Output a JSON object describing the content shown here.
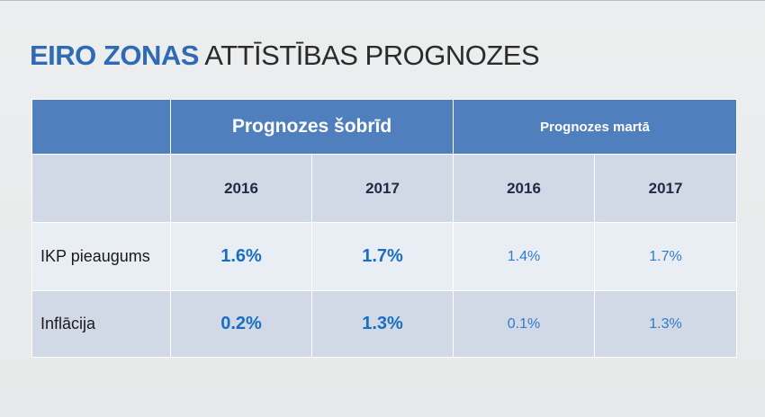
{
  "title": {
    "accent": "EIRO ZONAS",
    "rest": " ATTĪSTĪBAS PROGNOZES"
  },
  "table": {
    "group_headers": [
      "Prognozes šobrīd",
      "Prognozes martā"
    ],
    "years": [
      "2016",
      "2017",
      "2016",
      "2017"
    ],
    "rows": [
      {
        "label": "IKP pieaugums",
        "values": [
          "1.6%",
          "1.7%",
          "1.4%",
          "1.7%"
        ]
      },
      {
        "label": "Inflācija",
        "values": [
          "0.2%",
          "1.3%",
          "0.1%",
          "1.3%"
        ]
      }
    ]
  },
  "colors": {
    "accent": "#2f6bb5",
    "header_bg": "#4f7fbd",
    "row_light": "#e9edf4",
    "row_dark": "#d2d9e6",
    "value_blue": "#1a6ec2"
  }
}
